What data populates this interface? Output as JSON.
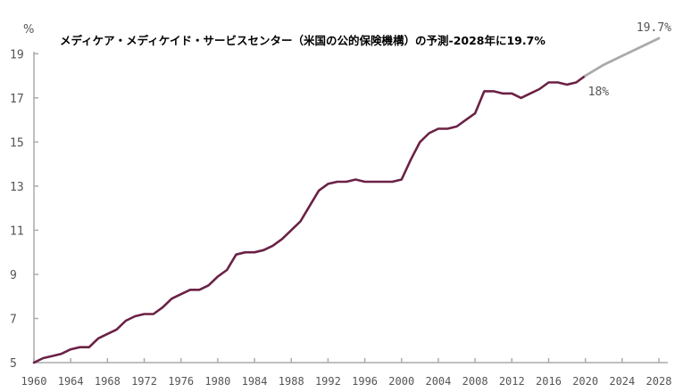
{
  "chart_data": {
    "type": "line",
    "title": "メディケア・メディケイド・サービスセンター（米国の公的保険機構）の予測-2028年に19.7%",
    "ylabel": "%",
    "xlabel": "",
    "ylim": [
      5,
      20
    ],
    "xlim": [
      1960,
      2029
    ],
    "y_ticks": [
      "19",
      "17",
      "15",
      "13",
      "11",
      "9",
      "7",
      "5"
    ],
    "x_ticks": [
      "1960",
      "1964",
      "1968",
      "1972",
      "1976",
      "1980",
      "1984",
      "1988",
      "1992",
      "1996",
      "2000",
      "2004",
      "2008",
      "2012",
      "2016",
      "2020",
      "2024",
      "2028"
    ],
    "grid": false,
    "series": [
      {
        "color": "#6b2145",
        "x": [
          1960,
          1961,
          1962,
          1963,
          1964,
          1965,
          1966,
          1967,
          1968,
          1969,
          1970,
          1971,
          1972,
          1973,
          1974,
          1975,
          1976,
          1977,
          1978,
          1979,
          1980,
          1981,
          1982,
          1983,
          1984,
          1985,
          1986,
          1987,
          1988,
          1989,
          1990,
          1991,
          1992,
          1993,
          1994,
          1995,
          1996,
          1997,
          1998,
          1999,
          2000,
          2001,
          2002,
          2003,
          2004,
          2005,
          2006,
          2007,
          2008,
          2009,
          2010,
          2011,
          2012,
          2013,
          2014,
          2015,
          2016,
          2017,
          2018,
          2019,
          2020
        ],
        "values": [
          5.0,
          5.2,
          5.3,
          5.4,
          5.6,
          5.7,
          5.7,
          6.1,
          6.3,
          6.5,
          6.9,
          7.1,
          7.2,
          7.2,
          7.5,
          7.9,
          8.1,
          8.3,
          8.3,
          8.5,
          8.9,
          9.2,
          9.9,
          10.0,
          10.0,
          10.1,
          10.3,
          10.6,
          11.0,
          11.4,
          12.1,
          12.8,
          13.1,
          13.2,
          13.2,
          13.3,
          13.2,
          13.2,
          13.2,
          13.2,
          13.3,
          14.2,
          15.0,
          15.4,
          15.6,
          15.6,
          15.7,
          16.0,
          16.3,
          17.3,
          17.3,
          17.2,
          17.2,
          17.0,
          17.2,
          17.4,
          17.7,
          17.7,
          17.6,
          17.7,
          18.0
        ]
      },
      {
        "color": "#aaaaaa",
        "x": [
          2020,
          2022,
          2024,
          2026,
          2028
        ],
        "values": [
          18.0,
          18.5,
          18.9,
          19.3,
          19.7
        ]
      }
    ],
    "annotations": [
      {
        "text": "18%",
        "x": 2020,
        "y": 18.0
      },
      {
        "text": "19.7%",
        "x": 2028,
        "y": 19.7
      }
    ]
  }
}
